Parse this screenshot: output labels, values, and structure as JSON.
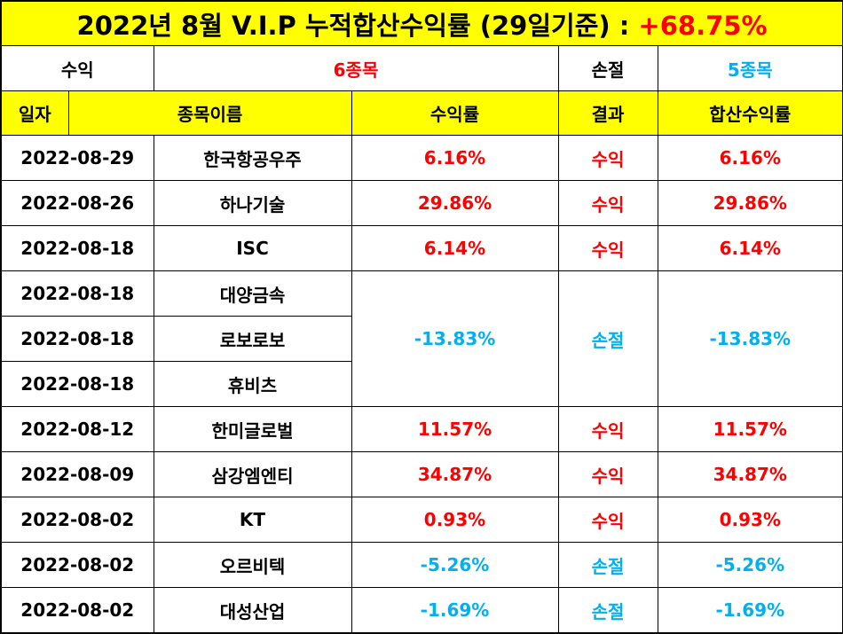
{
  "title": {
    "text": "2022년 8월 V.I.P 누적합산수익률 (29일기준) : ",
    "total": "+68.75%"
  },
  "summary": {
    "profit_label": "수익",
    "profit_count": "6종목",
    "loss_label": "손절",
    "loss_count": "5종목"
  },
  "headers": [
    "일자",
    "종목이름",
    "수익률",
    "결과",
    "합산수익률"
  ],
  "rows": [
    {
      "date": "2022-08-29",
      "name": "한국항공우주",
      "rate": "6.16%",
      "result": "수익",
      "sum": "6.16%"
    },
    {
      "date": "2022-08-26",
      "name": "하나기술",
      "rate": "29.86%",
      "result": "수익",
      "sum": "29.86%"
    },
    {
      "date": "2022-08-18",
      "name": "ISC",
      "rate": "6.14%",
      "result": "수익",
      "sum": "6.14%"
    },
    {
      "date": "2022-08-18",
      "name": "대양금속",
      "rate": "-13.83%",
      "result": "손절",
      "sum": "-13.83%"
    },
    {
      "date": "2022-08-18",
      "name": "로보로보"
    },
    {
      "date": "2022-08-18",
      "name": "휴비츠"
    },
    {
      "date": "2022-08-12",
      "name": "한미글로벌",
      "rate": "11.57%",
      "result": "수익",
      "sum": "11.57%"
    },
    {
      "date": "2022-08-09",
      "name": "삼강엠엔티",
      "rate": "34.87%",
      "result": "수익",
      "sum": "34.87%"
    },
    {
      "date": "2022-08-02",
      "name": "KT",
      "rate": "0.93%",
      "result": "수익",
      "sum": "0.93%"
    },
    {
      "date": "2022-08-02",
      "name": "오르비텍",
      "rate": "-5.26%",
      "result": "손절",
      "sum": "-5.26%"
    },
    {
      "date": "2022-08-02",
      "name": "대성산업",
      "rate": "-1.69%",
      "result": "손절",
      "sum": "-1.69%"
    }
  ],
  "colors": {
    "profit": "#ff0000",
    "loss": "#00b0f0",
    "header_bg": "#ffff00"
  }
}
